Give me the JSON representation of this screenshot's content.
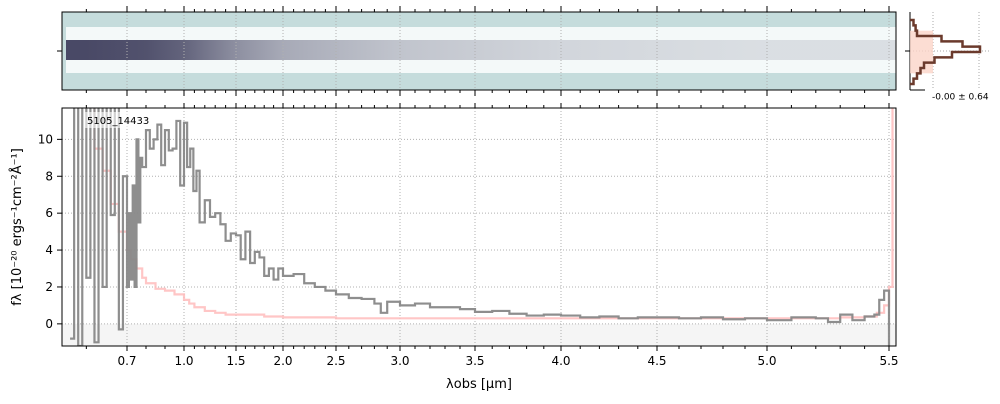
{
  "chart_data": [
    {
      "type": "heatmap",
      "panel": "2D spectrum",
      "colors": {
        "background": "#c5dcdc",
        "band": "#ffffff",
        "trace": "#2b2a4c"
      },
      "trace_strength_by_wavelength": {
        "x": [
          0.6,
          0.8,
          1.0,
          1.5,
          2.0,
          3.0,
          4.0,
          5.0,
          5.5
        ],
        "level": [
          1.0,
          0.95,
          0.85,
          0.6,
          0.45,
          0.3,
          0.2,
          0.15,
          0.15
        ]
      }
    },
    {
      "type": "bar",
      "panel": "residual histogram",
      "label": "-0.00 ± 0.64",
      "colors": {
        "fill": "#fbd5c8",
        "edge": "#6b3a2c"
      },
      "bins": [
        -3,
        -2.5,
        -2,
        -1.5,
        -1,
        -0.5,
        0,
        0.5,
        1,
        1.5,
        2,
        2.5
      ],
      "counts": [
        0.05,
        0.1,
        0.15,
        0.2,
        0.35,
        0.6,
        1.0,
        0.75,
        0.45,
        0.1,
        0.08,
        0.05
      ]
    },
    {
      "type": "line",
      "label": "5105_14433",
      "xlabel": "λobs [μm]",
      "ylabel": "fλ [10⁻²⁰ ergs⁻¹cm⁻²Å⁻¹]",
      "xticks": [
        0.7,
        1.0,
        1.5,
        2.0,
        2.5,
        3.0,
        3.5,
        4.0,
        4.5,
        5.0,
        5.5
      ],
      "xtick_labels": [
        "0.7",
        "1.0",
        "1.5",
        "2.0",
        "2.5",
        "3.0",
        "3.5",
        "4.0",
        "4.5",
        "5.0",
        "5.5"
      ],
      "yticks": [
        0,
        2,
        4,
        6,
        8,
        10
      ],
      "ytick_labels": [
        "0",
        "2",
        "4",
        "6",
        "8",
        "10"
      ],
      "xlim": [
        0.55,
        5.52
      ],
      "ylim": [
        -1.2,
        11.7
      ],
      "grid": true,
      "series": [
        {
          "role": "flux",
          "color": "#888888",
          "x": [
            0.56,
            0.57,
            0.58,
            0.59,
            0.6,
            0.61,
            0.62,
            0.63,
            0.64,
            0.65,
            0.66,
            0.67,
            0.68,
            0.69,
            0.7,
            0.71,
            0.72,
            0.73,
            0.74,
            0.75,
            0.76,
            0.77,
            0.78,
            0.8,
            0.82,
            0.84,
            0.86,
            0.88,
            0.9,
            0.92,
            0.94,
            0.96,
            0.98,
            1.0,
            1.03,
            1.06,
            1.09,
            1.12,
            1.15,
            1.2,
            1.25,
            1.3,
            1.35,
            1.4,
            1.45,
            1.5,
            1.55,
            1.6,
            1.65,
            1.7,
            1.75,
            1.8,
            1.85,
            1.9,
            1.95,
            2.0,
            2.1,
            2.2,
            2.3,
            2.4,
            2.5,
            2.6,
            2.7,
            2.8,
            2.85,
            2.9,
            3.0,
            3.1,
            3.2,
            3.3,
            3.4,
            3.5,
            3.6,
            3.7,
            3.8,
            3.9,
            4.0,
            4.1,
            4.2,
            4.3,
            4.4,
            4.5,
            4.6,
            4.7,
            4.8,
            4.9,
            5.0,
            5.1,
            5.2,
            5.25,
            5.3,
            5.35,
            5.4,
            5.44,
            5.46,
            5.48,
            5.5
          ],
          "y": [
            -0.8,
            12,
            -1.2,
            12,
            2.5,
            12,
            -1,
            12,
            2,
            12,
            5.9,
            12,
            -0.3,
            8,
            2.0,
            6.0,
            2.4,
            7.5,
            2.0,
            10,
            5.5,
            9,
            8.5,
            10.5,
            9.5,
            10,
            10.8,
            8.6,
            10.5,
            9.4,
            9.5,
            11,
            7.5,
            10.9,
            8.5,
            9.5,
            7.2,
            8.3,
            5.5,
            6.7,
            5.8,
            6.0,
            5.4,
            4.5,
            4.9,
            4.8,
            3.5,
            5.0,
            3.3,
            3.9,
            3.6,
            2.6,
            3.0,
            2.4,
            3.0,
            2.6,
            2.7,
            2.2,
            2.0,
            1.8,
            1.6,
            1.4,
            1.35,
            1.1,
            0.6,
            1.2,
            1.0,
            1.1,
            0.9,
            0.9,
            0.8,
            0.65,
            0.7,
            0.55,
            0.45,
            0.5,
            0.45,
            0.35,
            0.4,
            0.3,
            0.35,
            0.35,
            0.3,
            0.35,
            0.25,
            0.3,
            0.2,
            0.35,
            0.3,
            0.1,
            0.5,
            0.2,
            0.4,
            0.5,
            1.3,
            1.8,
            -1.2
          ]
        },
        {
          "role": "uncertainty",
          "color": "#ffbcbc",
          "x": [
            0.6,
            0.62,
            0.64,
            0.66,
            0.68,
            0.7,
            0.72,
            0.75,
            0.78,
            0.8,
            0.85,
            0.9,
            0.95,
            1.0,
            1.05,
            1.1,
            1.2,
            1.3,
            1.4,
            1.5,
            1.6,
            1.8,
            2.0,
            2.5,
            3.0,
            3.5,
            4.0,
            4.5,
            5.0,
            5.3,
            5.4,
            5.45,
            5.48,
            5.5,
            5.51
          ],
          "y": [
            12,
            9.5,
            8.3,
            6.5,
            5.0,
            4.0,
            3.5,
            3.0,
            2.5,
            2.2,
            1.9,
            1.8,
            1.6,
            1.3,
            1.1,
            0.9,
            0.7,
            0.6,
            0.5,
            0.5,
            0.5,
            0.4,
            0.35,
            0.3,
            0.3,
            0.3,
            0.3,
            0.3,
            0.3,
            0.35,
            0.4,
            0.6,
            1.0,
            2.0,
            12
          ]
        }
      ]
    }
  ]
}
